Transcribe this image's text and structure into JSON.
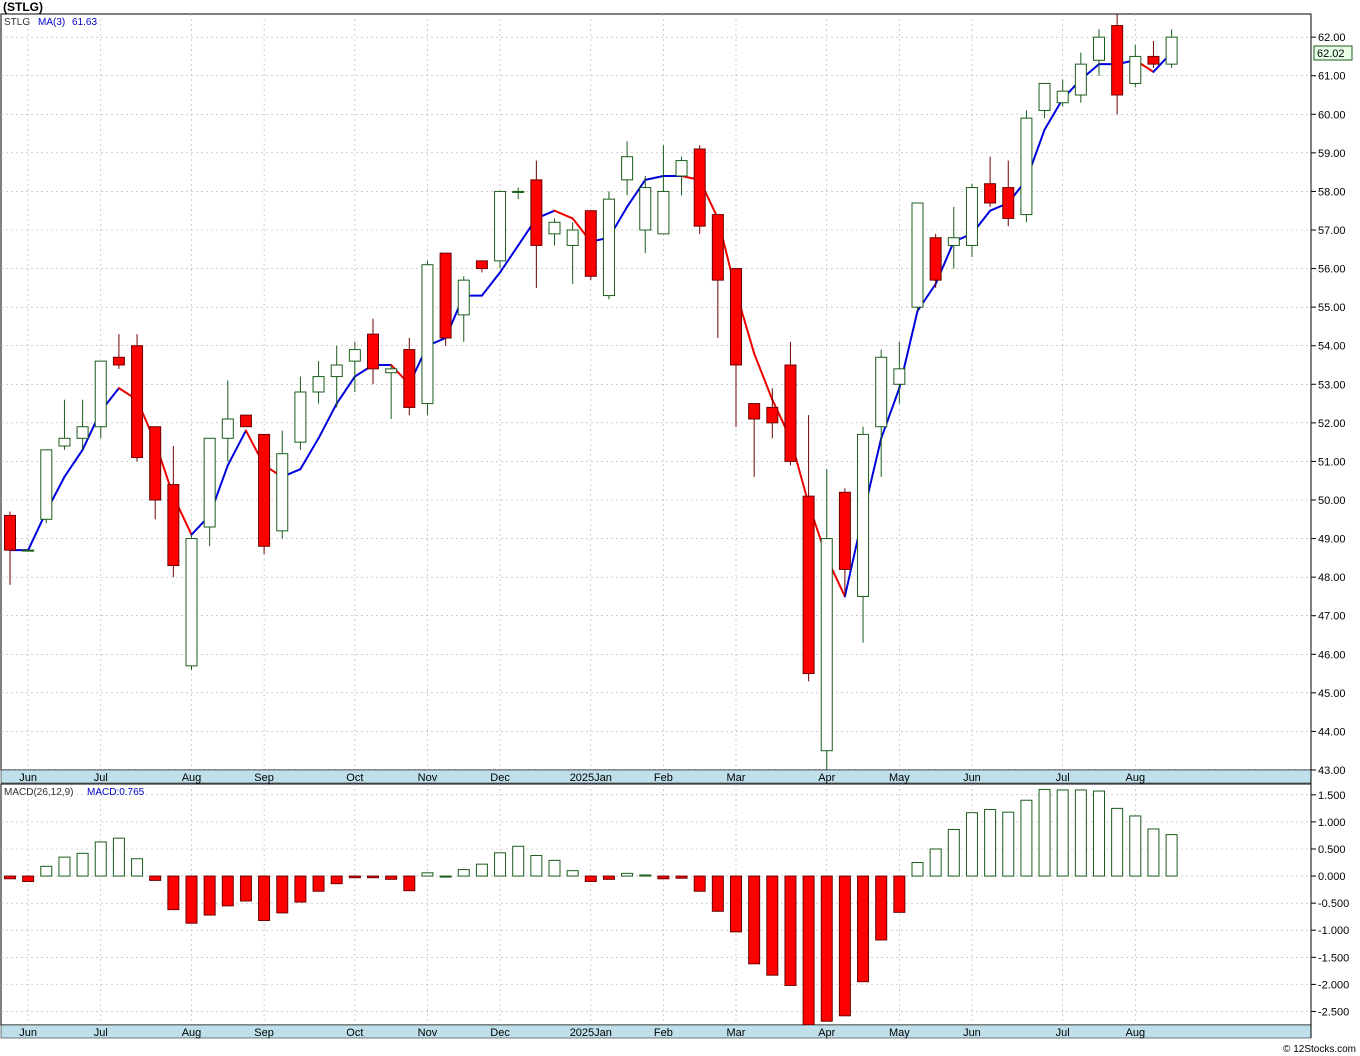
{
  "title": "(STLG)",
  "price_legend": {
    "symbol": "STLG",
    "ma_label": "MA(3)",
    "ma_value": "61.63"
  },
  "macd_legend": {
    "label": "MACD(26,12,9)",
    "value_label": "MACD:0.765"
  },
  "last_price_tag": "62.02",
  "watermark": "© 12Stocks.com",
  "colors": {
    "up": "#ffffff",
    "up_border": "#1a5c1a",
    "down": "#ff0000",
    "down_border": "#700000",
    "ma_up": "#0000dd",
    "ma_down": "#ee0000",
    "axis_band": "#bfe0ea",
    "grid": "#b0b0b0"
  },
  "chart_data": [
    {
      "type": "candlestick",
      "name": "price",
      "ylim": [
        43,
        62.6
      ],
      "yticks": [
        "43.00",
        "44.00",
        "45.00",
        "46.00",
        "47.00",
        "48.00",
        "49.00",
        "50.00",
        "51.00",
        "52.00",
        "53.00",
        "54.00",
        "55.00",
        "56.00",
        "57.00",
        "58.00",
        "59.00",
        "60.00",
        "61.00",
        "62.00"
      ],
      "grid": true,
      "months": [
        {
          "label": "Jun",
          "index": 1
        },
        {
          "label": "Jul",
          "index": 5
        },
        {
          "label": "Aug",
          "index": 10
        },
        {
          "label": "Sep",
          "index": 14
        },
        {
          "label": "Oct",
          "index": 19
        },
        {
          "label": "Nov",
          "index": 23
        },
        {
          "label": "Dec",
          "index": 27
        },
        {
          "label": "2025Jan",
          "index": 32
        },
        {
          "label": "Feb",
          "index": 36
        },
        {
          "label": "Mar",
          "index": 40
        },
        {
          "label": "Apr",
          "index": 45
        },
        {
          "label": "May",
          "index": 49
        },
        {
          "label": "Jun",
          "index": 53
        },
        {
          "label": "Jul",
          "index": 58
        },
        {
          "label": "Aug",
          "index": 62
        }
      ],
      "candles": [
        {
          "o": 49.6,
          "h": 49.7,
          "l": 47.8,
          "c": 48.7
        },
        {
          "o": 48.7,
          "h": 48.7,
          "l": 48.7,
          "c": 48.7
        },
        {
          "o": 49.5,
          "h": 51.3,
          "l": 49.4,
          "c": 51.3
        },
        {
          "o": 51.4,
          "h": 52.6,
          "l": 51.3,
          "c": 51.6
        },
        {
          "o": 51.6,
          "h": 52.6,
          "l": 51.3,
          "c": 51.9
        },
        {
          "o": 51.9,
          "h": 53.6,
          "l": 51.6,
          "c": 53.6
        },
        {
          "o": 53.7,
          "h": 54.3,
          "l": 53.4,
          "c": 53.5
        },
        {
          "o": 54.0,
          "h": 54.3,
          "l": 51.0,
          "c": 51.1
        },
        {
          "o": 51.9,
          "h": 51.9,
          "l": 49.5,
          "c": 50.0
        },
        {
          "o": 50.4,
          "h": 51.4,
          "l": 48.0,
          "c": 48.3
        },
        {
          "o": 45.7,
          "h": 49.1,
          "l": 45.6,
          "c": 49.0
        },
        {
          "o": 49.3,
          "h": 51.6,
          "l": 48.8,
          "c": 51.6
        },
        {
          "o": 51.6,
          "h": 53.1,
          "l": 51.0,
          "c": 52.1
        },
        {
          "o": 52.2,
          "h": 52.2,
          "l": 51.9,
          "c": 51.9
        },
        {
          "o": 51.7,
          "h": 51.7,
          "l": 48.6,
          "c": 48.8
        },
        {
          "o": 49.2,
          "h": 51.8,
          "l": 49.0,
          "c": 51.2
        },
        {
          "o": 51.5,
          "h": 53.2,
          "l": 51.3,
          "c": 52.8
        },
        {
          "o": 52.8,
          "h": 53.6,
          "l": 52.5,
          "c": 53.2
        },
        {
          "o": 53.2,
          "h": 54.0,
          "l": 52.4,
          "c": 53.5
        },
        {
          "o": 53.6,
          "h": 54.1,
          "l": 52.8,
          "c": 53.9
        },
        {
          "o": 54.3,
          "h": 54.7,
          "l": 53.0,
          "c": 53.4
        },
        {
          "o": 53.3,
          "h": 53.5,
          "l": 52.1,
          "c": 53.4
        },
        {
          "o": 53.9,
          "h": 54.2,
          "l": 52.2,
          "c": 52.4
        },
        {
          "o": 52.5,
          "h": 56.2,
          "l": 52.2,
          "c": 56.1
        },
        {
          "o": 56.4,
          "h": 56.4,
          "l": 54.0,
          "c": 54.2
        },
        {
          "o": 54.8,
          "h": 55.8,
          "l": 54.1,
          "c": 55.7
        },
        {
          "o": 56.2,
          "h": 56.2,
          "l": 55.9,
          "c": 56.0
        },
        {
          "o": 56.2,
          "h": 58.0,
          "l": 56.0,
          "c": 58.0
        },
        {
          "o": 58.0,
          "h": 58.1,
          "l": 57.8,
          "c": 58.0
        },
        {
          "o": 58.3,
          "h": 58.8,
          "l": 55.5,
          "c": 56.6
        },
        {
          "o": 56.9,
          "h": 57.3,
          "l": 56.6,
          "c": 57.2
        },
        {
          "o": 56.6,
          "h": 57.2,
          "l": 55.6,
          "c": 57.0
        },
        {
          "o": 57.5,
          "h": 57.5,
          "l": 55.7,
          "c": 55.8
        },
        {
          "o": 55.3,
          "h": 58.0,
          "l": 55.2,
          "c": 57.8
        },
        {
          "o": 58.3,
          "h": 59.3,
          "l": 57.9,
          "c": 58.9
        },
        {
          "o": 57.0,
          "h": 58.4,
          "l": 56.4,
          "c": 58.1
        },
        {
          "o": 56.9,
          "h": 59.2,
          "l": 56.9,
          "c": 58.0
        },
        {
          "o": 58.4,
          "h": 58.9,
          "l": 57.9,
          "c": 58.8
        },
        {
          "o": 59.1,
          "h": 59.2,
          "l": 56.9,
          "c": 57.1
        },
        {
          "o": 57.4,
          "h": 57.4,
          "l": 54.2,
          "c": 55.7
        },
        {
          "o": 56.0,
          "h": 56.0,
          "l": 51.9,
          "c": 53.5
        },
        {
          "o": 52.5,
          "h": 52.5,
          "l": 50.6,
          "c": 52.1
        },
        {
          "o": 52.4,
          "h": 52.9,
          "l": 51.6,
          "c": 52.0
        },
        {
          "o": 53.5,
          "h": 54.1,
          "l": 50.9,
          "c": 51.0
        },
        {
          "o": 50.1,
          "h": 52.2,
          "l": 45.3,
          "c": 45.5
        },
        {
          "o": 43.5,
          "h": 50.8,
          "l": 43.0,
          "c": 49.0
        },
        {
          "o": 50.2,
          "h": 50.3,
          "l": 47.5,
          "c": 48.2
        },
        {
          "o": 47.5,
          "h": 51.9,
          "l": 46.3,
          "c": 51.7
        },
        {
          "o": 51.9,
          "h": 53.9,
          "l": 50.6,
          "c": 53.7
        },
        {
          "o": 53.0,
          "h": 54.1,
          "l": 52.5,
          "c": 53.4
        },
        {
          "o": 55.0,
          "h": 57.7,
          "l": 54.9,
          "c": 57.7
        },
        {
          "o": 56.8,
          "h": 56.9,
          "l": 55.5,
          "c": 55.7
        },
        {
          "o": 56.6,
          "h": 57.6,
          "l": 56.0,
          "c": 56.8
        },
        {
          "o": 56.6,
          "h": 58.2,
          "l": 56.3,
          "c": 58.1
        },
        {
          "o": 58.2,
          "h": 58.9,
          "l": 57.6,
          "c": 57.7
        },
        {
          "o": 58.1,
          "h": 58.8,
          "l": 57.1,
          "c": 57.3
        },
        {
          "o": 57.4,
          "h": 60.1,
          "l": 57.2,
          "c": 59.9
        },
        {
          "o": 60.1,
          "h": 60.8,
          "l": 59.9,
          "c": 60.8
        },
        {
          "o": 60.3,
          "h": 60.9,
          "l": 60.2,
          "c": 60.6
        },
        {
          "o": 60.5,
          "h": 61.6,
          "l": 60.3,
          "c": 61.3
        },
        {
          "o": 61.4,
          "h": 62.2,
          "l": 61.0,
          "c": 62.0
        },
        {
          "o": 62.3,
          "h": 62.6,
          "l": 60.0,
          "c": 60.5
        },
        {
          "o": 60.8,
          "h": 61.8,
          "l": 60.7,
          "c": 61.5
        },
        {
          "o": 61.5,
          "h": 61.9,
          "l": 61.2,
          "c": 61.3
        },
        {
          "o": 61.3,
          "h": 62.2,
          "l": 61.2,
          "c": 62.0
        }
      ],
      "ma": [
        48.7,
        48.7,
        49.7,
        50.6,
        51.3,
        52.3,
        52.9,
        52.6,
        51.5,
        50.1,
        49.1,
        49.6,
        50.9,
        51.8,
        50.9,
        50.6,
        50.8,
        51.6,
        52.5,
        53.2,
        53.5,
        53.5,
        53.0,
        54.0,
        54.2,
        55.3,
        55.3,
        55.9,
        56.6,
        57.3,
        57.5,
        57.3,
        56.7,
        56.8,
        57.6,
        58.3,
        58.4,
        58.4,
        58.3,
        57.3,
        55.4,
        53.8,
        52.6,
        51.6,
        49.9,
        48.5,
        47.5,
        49.6,
        51.6,
        52.9,
        54.9,
        55.6,
        56.7,
        56.9,
        57.5,
        57.7,
        58.3,
        59.6,
        60.4,
        60.9,
        61.3,
        61.3,
        61.4,
        61.1,
        61.6
      ]
    },
    {
      "type": "bar",
      "name": "macd",
      "ylim": [
        -2.75,
        1.7
      ],
      "yticks": [
        "-2.500",
        "-2.000",
        "-1.500",
        "-1.000",
        "-0.500",
        "0.000",
        "0.500",
        "1.000",
        "1.500"
      ],
      "values": [
        -0.05,
        -0.1,
        0.18,
        0.35,
        0.42,
        0.63,
        0.7,
        0.32,
        -0.08,
        -0.62,
        -0.87,
        -0.72,
        -0.55,
        -0.46,
        -0.82,
        -0.68,
        -0.48,
        -0.28,
        -0.14,
        -0.03,
        -0.03,
        -0.06,
        -0.27,
        0.06,
        0.0,
        0.12,
        0.22,
        0.43,
        0.55,
        0.38,
        0.29,
        0.1,
        -0.1,
        -0.06,
        0.05,
        0.02,
        -0.05,
        -0.04,
        -0.28,
        -0.65,
        -1.03,
        -1.62,
        -1.83,
        -2.02,
        -2.75,
        -2.68,
        -2.58,
        -1.95,
        -1.18,
        -0.67,
        0.25,
        0.5,
        0.86,
        1.17,
        1.23,
        1.18,
        1.4,
        1.6,
        1.59,
        1.59,
        1.57,
        1.25,
        1.11,
        0.87,
        0.765
      ]
    }
  ]
}
